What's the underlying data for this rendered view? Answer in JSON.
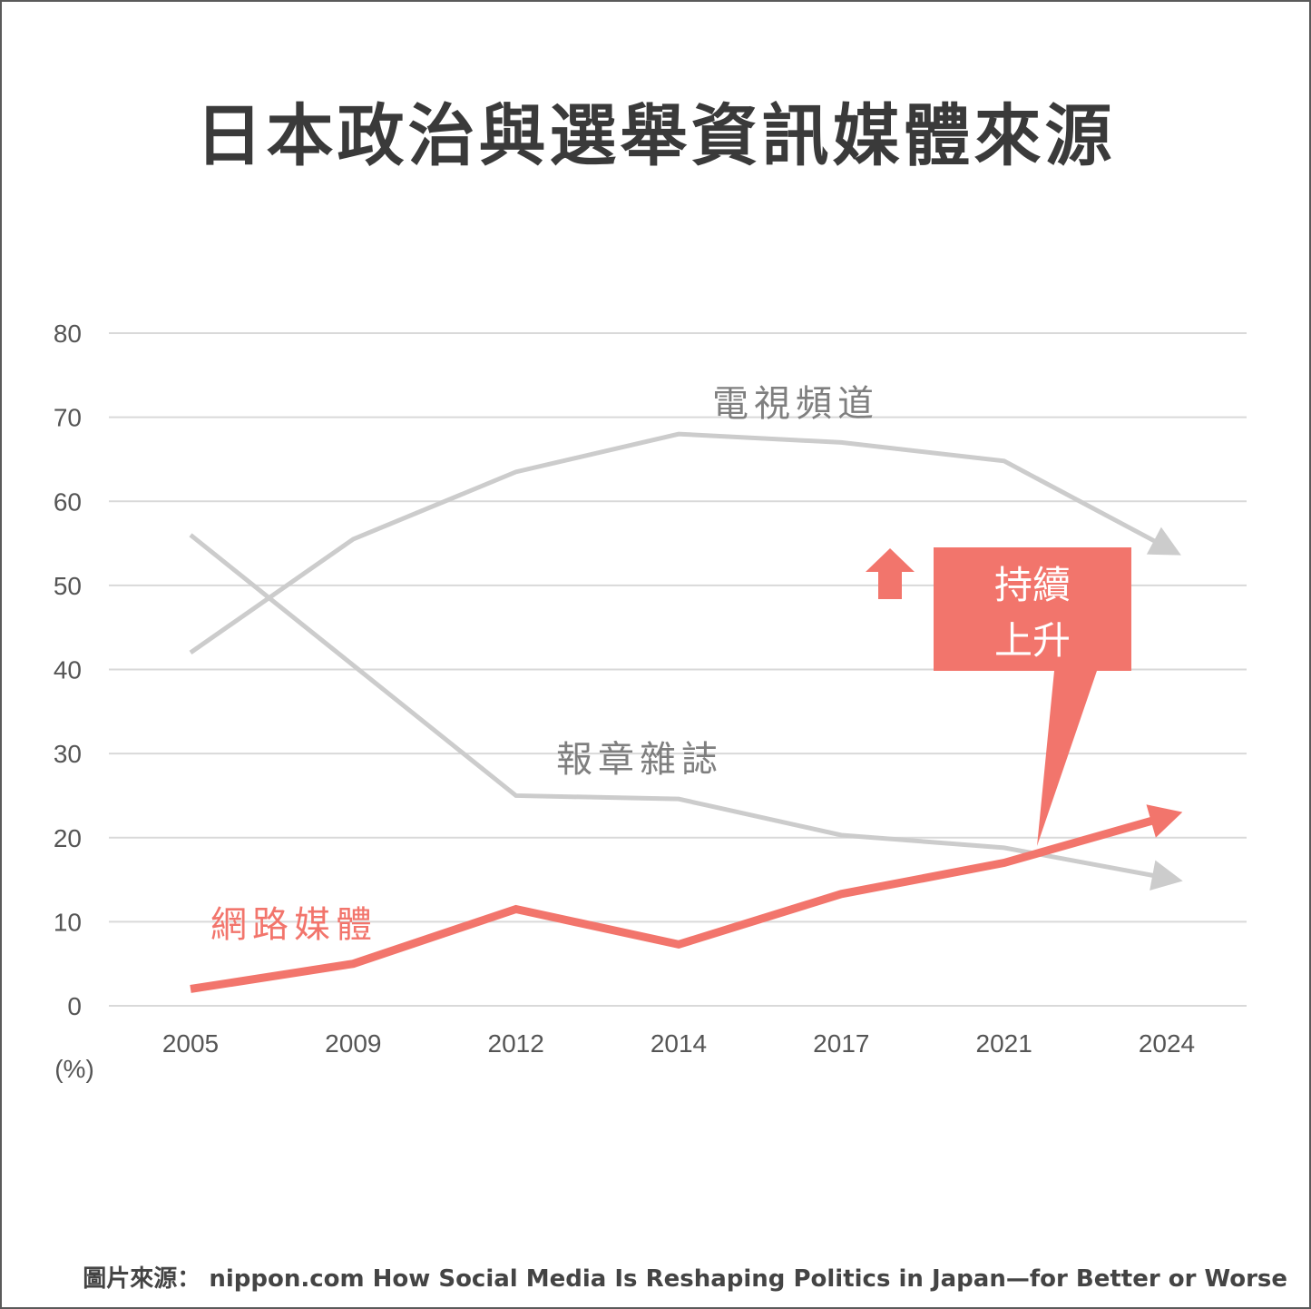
{
  "title": "日本政治與選舉資訊媒體來源",
  "source": "圖片來源： nippon.com How Social Media Is Reshaping Politics in Japan—for Better or Worse",
  "colors": {
    "gray": "#cccccc",
    "red": "#f2756c",
    "text": "#3a3a3a",
    "grid": "#d9d9d9"
  },
  "chart_data": {
    "type": "line",
    "categories": [
      "2005",
      "2009",
      "2012",
      "2014",
      "2017",
      "2021",
      "2024"
    ],
    "unit_label": "(%)",
    "ylim": [
      0,
      80
    ],
    "yticks": [
      0,
      10,
      20,
      30,
      40,
      50,
      60,
      70,
      80
    ],
    "grid": true,
    "series": [
      {
        "name": "電視頻道",
        "values": [
          42,
          55.5,
          63.5,
          68,
          67,
          64.8,
          54.5
        ],
        "color": "#cccccc"
      },
      {
        "name": "報章雜誌",
        "values": [
          56,
          40.5,
          25,
          24.6,
          20.3,
          18.8,
          15.2
        ],
        "color": "#cccccc"
      },
      {
        "name": "網路媒體",
        "values": [
          2,
          5,
          11.5,
          7.3,
          13.3,
          17,
          22.5
        ],
        "color": "#f2756c"
      }
    ],
    "annotation": {
      "text_line1": "持續",
      "text_line2": "上升",
      "color": "#f2756c",
      "icon": "up-arrow-icon"
    }
  }
}
